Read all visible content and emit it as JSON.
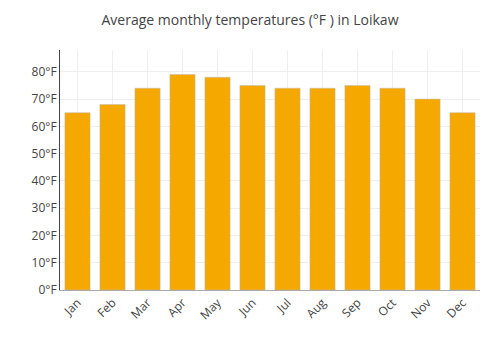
{
  "chart_data": {
    "type": "bar",
    "title": "Average monthly temperatures (°F ) in Loikaw",
    "categories": [
      "Jan",
      "Feb",
      "Mar",
      "Apr",
      "May",
      "Jun",
      "Jul",
      "Aug",
      "Sep",
      "Oct",
      "Nov",
      "Dec"
    ],
    "values": [
      65,
      68,
      74,
      79,
      78,
      75,
      74,
      74,
      75,
      74,
      70,
      65
    ],
    "color": "#F5A800",
    "ylim": [
      0,
      88
    ],
    "yticks": [
      {
        "value": 0,
        "label": "0°F"
      },
      {
        "value": 10,
        "label": "10°F"
      },
      {
        "value": 20,
        "label": "20°F"
      },
      {
        "value": 30,
        "label": "30°F"
      },
      {
        "value": 40,
        "label": "40°F"
      },
      {
        "value": 50,
        "label": "50°F"
      },
      {
        "value": 60,
        "label": "60°F"
      },
      {
        "value": 70,
        "label": "70°F"
      },
      {
        "value": 80,
        "label": "80°F"
      }
    ],
    "grid": true
  }
}
